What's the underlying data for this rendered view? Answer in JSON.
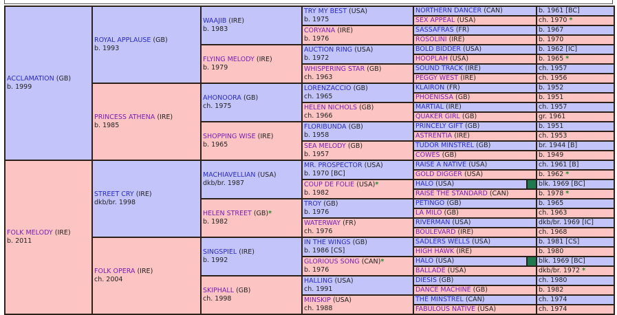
{
  "colors": {
    "male_bg": "#c3c4fa",
    "female_bg": "#fcc4c2",
    "male_link": "#2a2ad0",
    "female_link": "#7a1fb3",
    "star": "#1e8a2a",
    "halo_marker": "#1c7a4e",
    "border": "#2b2118"
  },
  "gen1": [
    {
      "name": "ACCLAMATION",
      "country": "(GB)",
      "info": "b. 1999",
      "sex": "m"
    },
    {
      "name": "FOLK MELODY",
      "country": "(IRE)",
      "info": "b. 2011",
      "sex": "f"
    }
  ],
  "gen2": [
    {
      "name": "ROYAL APPLAUSE",
      "country": "(GB)",
      "info": "b. 1993",
      "sex": "m"
    },
    {
      "name": "PRINCESS ATHENA",
      "country": "(IRE)",
      "info": "b. 1985",
      "sex": "f"
    },
    {
      "name": "STREET CRY",
      "country": "(IRE)",
      "info": "dkb/br. 1998",
      "sex": "m"
    },
    {
      "name": "FOLK OPERA",
      "country": "(IRE)",
      "info": "ch. 2004",
      "sex": "f"
    }
  ],
  "gen3": [
    {
      "name": "WAAJIB",
      "country": "(IRE)",
      "info": "b. 1983",
      "sex": "m"
    },
    {
      "name": "FLYING MELODY",
      "country": "(IRE)",
      "info": "b. 1979",
      "sex": "f"
    },
    {
      "name": "AHONOORA",
      "country": "(GB)",
      "info": "ch. 1975",
      "sex": "m"
    },
    {
      "name": "SHOPPING WISE",
      "country": "(IRE)",
      "info": "b. 1965",
      "sex": "f"
    },
    {
      "name": "MACHIAVELLIAN",
      "country": "(USA)",
      "info": "dkb/br. 1987",
      "sex": "m"
    },
    {
      "name": "HELEN STREET",
      "country": "(GB)",
      "info": "b. 1982",
      "sex": "f",
      "star": "*"
    },
    {
      "name": "SINGSPIEL",
      "country": "(IRE)",
      "info": "b. 1992",
      "sex": "m"
    },
    {
      "name": "SKIPHALL",
      "country": "(GB)",
      "info": "ch. 1998",
      "sex": "f"
    }
  ],
  "gen4": [
    {
      "name": "TRY MY BEST",
      "country": "(USA)",
      "info": "b. 1975",
      "sex": "m"
    },
    {
      "name": "CORYANA",
      "country": "(IRE)",
      "info": "b. 1976",
      "sex": "f"
    },
    {
      "name": "AUCTION RING",
      "country": "(USA)",
      "info": "b. 1972",
      "sex": "m"
    },
    {
      "name": "WHISPERING STAR",
      "country": "(GB)",
      "info": "ch. 1963",
      "sex": "f"
    },
    {
      "name": "LORENZACCIO",
      "country": "(GB)",
      "info": "ch. 1965",
      "sex": "m"
    },
    {
      "name": "HELEN NICHOLS",
      "country": "(GB)",
      "info": "ch. 1966",
      "sex": "f"
    },
    {
      "name": "FLORIBUNDA",
      "country": "(GB)",
      "info": "b. 1958",
      "sex": "m"
    },
    {
      "name": "SEA MELODY",
      "country": "(GB)",
      "info": "b. 1957",
      "sex": "f"
    },
    {
      "name": "MR. PROSPECTOR",
      "country": "(USA)",
      "info": "b. 1970 [BC]",
      "sex": "m"
    },
    {
      "name": "COUP DE FOLIE",
      "country": "(USA)",
      "info": "b. 1982",
      "sex": "f",
      "star": "*"
    },
    {
      "name": "TROY",
      "country": "(GB)",
      "info": "b. 1976",
      "sex": "m"
    },
    {
      "name": "WATERWAY",
      "country": "(FR)",
      "info": "ch. 1976",
      "sex": "f"
    },
    {
      "name": "IN THE WINGS",
      "country": "(GB)",
      "info": "b. 1986 [CS]",
      "sex": "m"
    },
    {
      "name": "GLORIOUS SONG",
      "country": "(CAN)",
      "info": "b. 1976",
      "sex": "f",
      "star": "*"
    },
    {
      "name": "HALLING",
      "country": "(USA)",
      "info": "ch. 1991",
      "sex": "m"
    },
    {
      "name": "MINSKIP",
      "country": "(USA)",
      "info": "ch. 1988",
      "sex": "f"
    }
  ],
  "gen5": [
    {
      "name": "NORTHERN DANCER",
      "country": "(CAN)",
      "info": "b. 1961 [BC]",
      "sex": "m"
    },
    {
      "name": "SEX APPEAL",
      "country": "(USA)",
      "info": "ch. 1970",
      "sex": "f",
      "star": "*"
    },
    {
      "name": "SASSAFRAS",
      "country": "(FR)",
      "info": "b. 1967",
      "sex": "m"
    },
    {
      "name": "ROSOLINI",
      "country": "(IRE)",
      "info": "b. 1970",
      "sex": "f"
    },
    {
      "name": "BOLD BIDDER",
      "country": "(USA)",
      "info": "b. 1962 [IC]",
      "sex": "m"
    },
    {
      "name": "HOOPLAH",
      "country": "(USA)",
      "info": "b. 1965",
      "sex": "f",
      "star": "*"
    },
    {
      "name": "SOUND TRACK",
      "country": "(IRE)",
      "info": "ch. 1957",
      "sex": "m"
    },
    {
      "name": "PEGGY WEST",
      "country": "(IRE)",
      "info": "ch. 1956",
      "sex": "f"
    },
    {
      "name": "KLAIRON",
      "country": "(FR)",
      "info": "b. 1952",
      "sex": "m"
    },
    {
      "name": "PHOENISSA",
      "country": "(GB)",
      "info": "b. 1951",
      "sex": "f"
    },
    {
      "name": "MARTIAL",
      "country": "(IRE)",
      "info": "ch. 1957",
      "sex": "m"
    },
    {
      "name": "QUAKER GIRL",
      "country": "(GB)",
      "info": "gr. 1961",
      "sex": "f"
    },
    {
      "name": "PRINCELY GIFT",
      "country": "(GB)",
      "info": "b. 1951",
      "sex": "m"
    },
    {
      "name": "ASTRENTIA",
      "country": "(IRE)",
      "info": "ch. 1953",
      "sex": "f"
    },
    {
      "name": "TUDOR MINSTREL",
      "country": "(GB)",
      "info": "br. 1944 [B]",
      "sex": "m"
    },
    {
      "name": "COWES",
      "country": "(GB)",
      "info": "b. 1949",
      "sex": "f"
    },
    {
      "name": "RAISE A NATIVE",
      "country": "(USA)",
      "info": "ch. 1961 [B]",
      "sex": "m"
    },
    {
      "name": "GOLD DIGGER",
      "country": "(USA)",
      "info": "b. 1962",
      "sex": "f",
      "star": "*"
    },
    {
      "name": "HALO",
      "country": "(USA)",
      "info": "blk. 1969 [BC]",
      "sex": "m",
      "marker": true
    },
    {
      "name": "RAISE THE STANDARD",
      "country": "(CAN)",
      "info": "b. 1978",
      "sex": "f",
      "star": "*"
    },
    {
      "name": "PETINGO",
      "country": "(GB)",
      "info": "b. 1965",
      "sex": "m"
    },
    {
      "name": "LA MILO",
      "country": "(GB)",
      "info": "ch. 1963",
      "sex": "f"
    },
    {
      "name": "RIVERMAN",
      "country": "(USA)",
      "info": "dkb/br. 1969 [IC]",
      "sex": "m"
    },
    {
      "name": "BOULEVARD",
      "country": "(IRE)",
      "info": "ch. 1968",
      "sex": "f"
    },
    {
      "name": "SADLERS WELLS",
      "country": "(USA)",
      "info": "b. 1981 [CS]",
      "sex": "m"
    },
    {
      "name": "HIGH HAWK",
      "country": "(IRE)",
      "info": "b. 1980",
      "sex": "f"
    },
    {
      "name": "HALO",
      "country": "(USA)",
      "info": "blk. 1969 [BC]",
      "sex": "m",
      "marker": true
    },
    {
      "name": "BALLADE",
      "country": "(USA)",
      "info": "dkb/br. 1972",
      "sex": "f",
      "star": "*"
    },
    {
      "name": "DIESIS",
      "country": "(GB)",
      "info": "ch. 1980",
      "sex": "m"
    },
    {
      "name": "DANCE MACHINE",
      "country": "(GB)",
      "info": "b. 1982",
      "sex": "f"
    },
    {
      "name": "THE MINSTREL",
      "country": "(CAN)",
      "info": "ch. 1974",
      "sex": "m"
    },
    {
      "name": "FABULOUS NATIVE",
      "country": "(USA)",
      "info": "ch. 1974",
      "sex": "f"
    }
  ]
}
